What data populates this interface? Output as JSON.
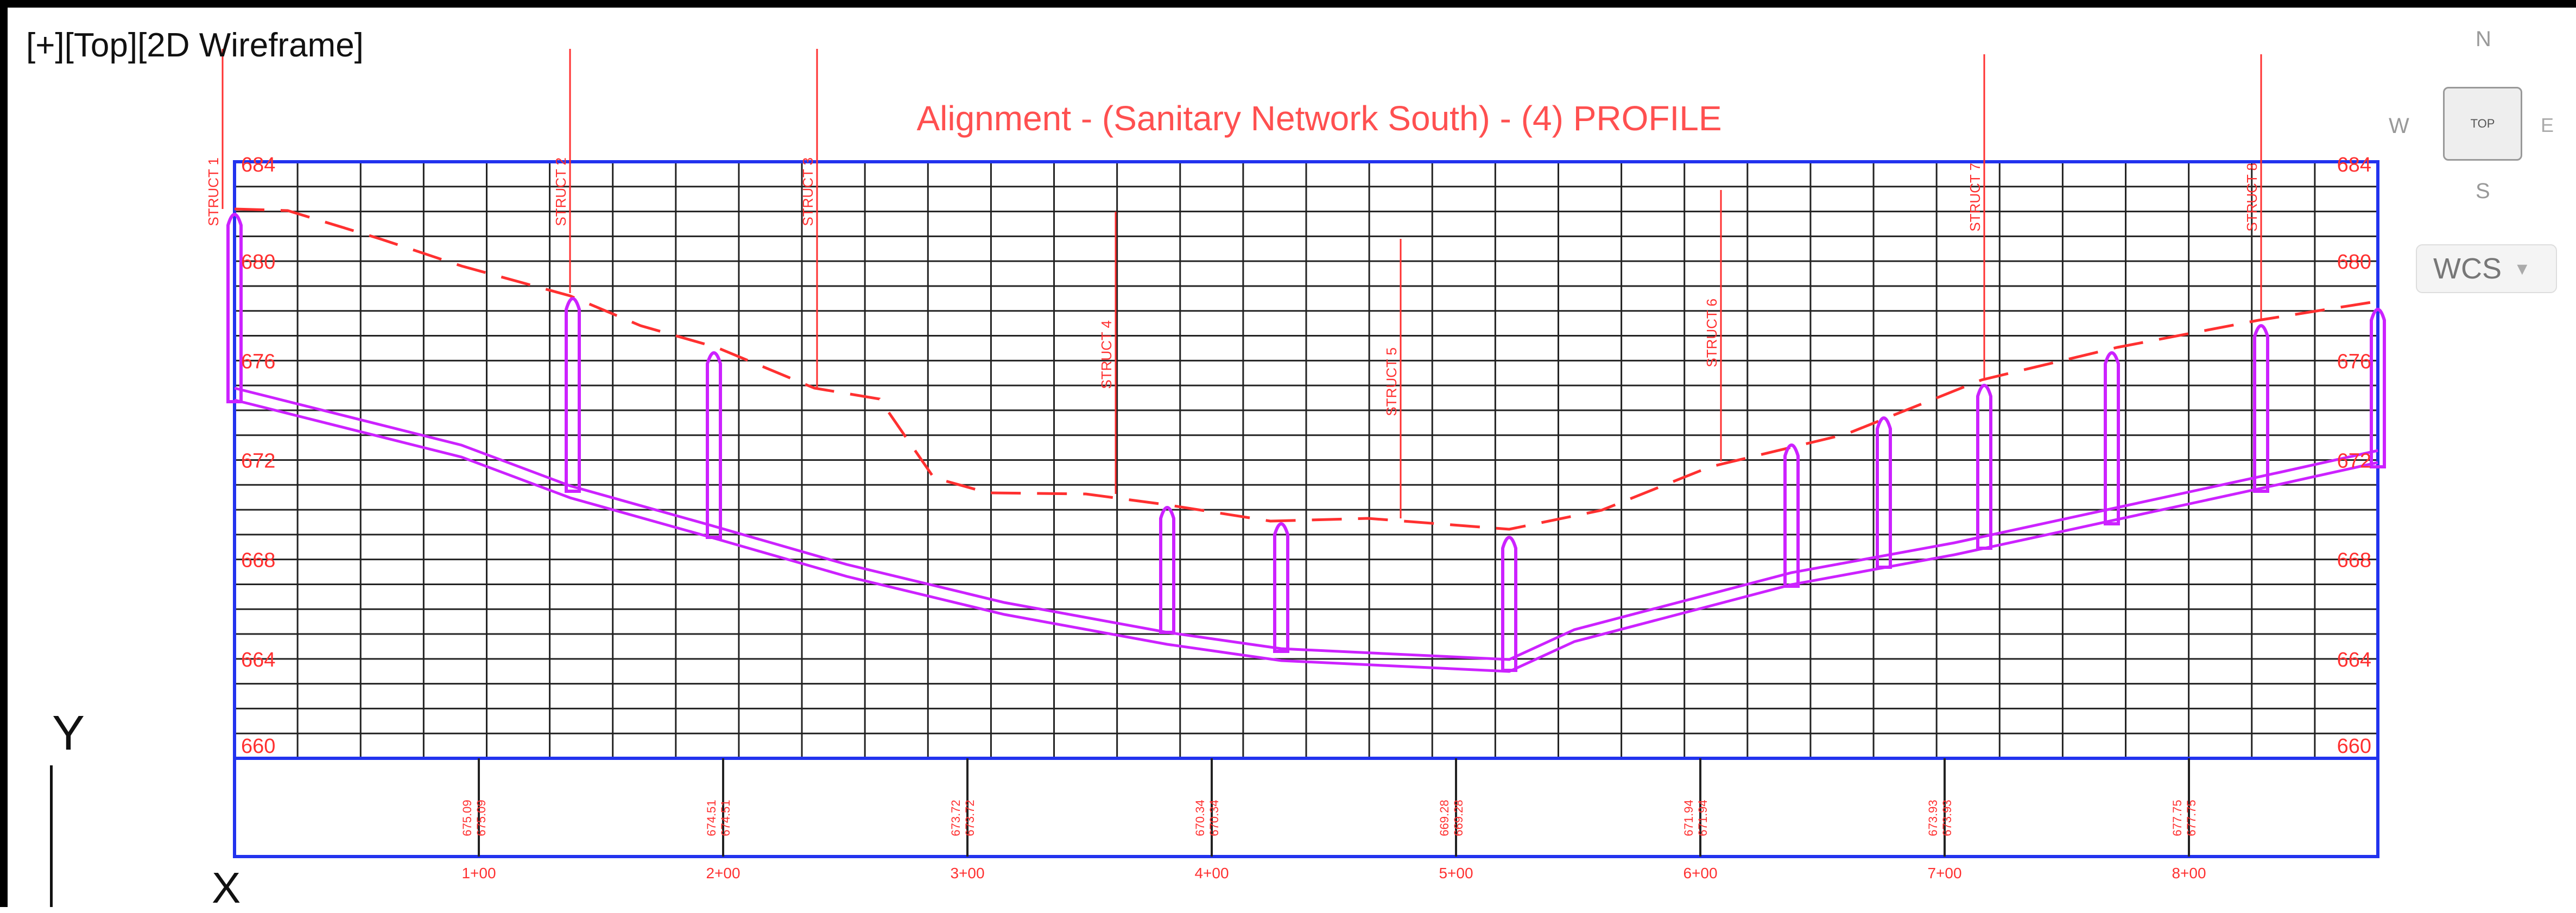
{
  "viewport": {
    "label": "[+][Top][2D Wireframe]"
  },
  "profile": {
    "title": "Alignment - (Sanitary Network South) - (4) PROFILE",
    "elev_labels": [
      "684",
      "680",
      "676",
      "672",
      "668",
      "664",
      "660"
    ],
    "station_labels": [
      "1+00",
      "2+00",
      "3+00",
      "4+00",
      "5+00",
      "6+00",
      "7+00",
      "8+00"
    ],
    "band_values": [
      [
        "675.09",
        "675.09"
      ],
      [
        "674.51",
        "674.51"
      ],
      [
        "673.72",
        "673.72"
      ],
      [
        "670.34",
        "670.34"
      ],
      [
        "669.28",
        "669.28"
      ],
      [
        "671.94",
        "671.94"
      ],
      [
        "673.93",
        "673.93"
      ],
      [
        "677.75",
        "677.75"
      ]
    ],
    "structure_labels": [
      "STRUCT 1",
      "STRUCT 2",
      "STRUCT 3",
      "STRUCT 4",
      "STRUCT 5",
      "STRUCT 6",
      "STRUCT 7",
      "STRUCT 8"
    ]
  },
  "viewcube": {
    "north": "N",
    "west": "W",
    "east": "E",
    "south": "S",
    "top_face": "TOP",
    "wcs_label": "WCS"
  },
  "ucs": {
    "y": "Y",
    "x": "X"
  },
  "colors": {
    "grid_border": "#2233ee",
    "grid_line": "#222222",
    "annotation": "#ff3030",
    "pipe": "#cc22ff"
  }
}
